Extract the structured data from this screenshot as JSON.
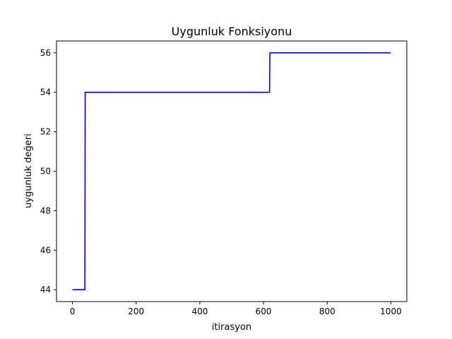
{
  "chart_data": {
    "type": "line",
    "title": "Uygunluk Fonksiyonu",
    "xlabel": "itirasyon",
    "ylabel": "uygunluk değeri",
    "xlim": [
      -50,
      1050
    ],
    "ylim": [
      43.4,
      56.6
    ],
    "x_ticks": [
      0,
      200,
      400,
      600,
      800,
      1000
    ],
    "y_ticks": [
      44,
      46,
      48,
      50,
      52,
      54,
      56
    ],
    "grid": false,
    "series": [
      {
        "color": "#0000ff",
        "step": true,
        "x": [
          0,
          39,
          40,
          619,
          620,
          999
        ],
        "y": [
          44,
          44,
          54,
          54,
          56,
          56
        ]
      }
    ]
  }
}
